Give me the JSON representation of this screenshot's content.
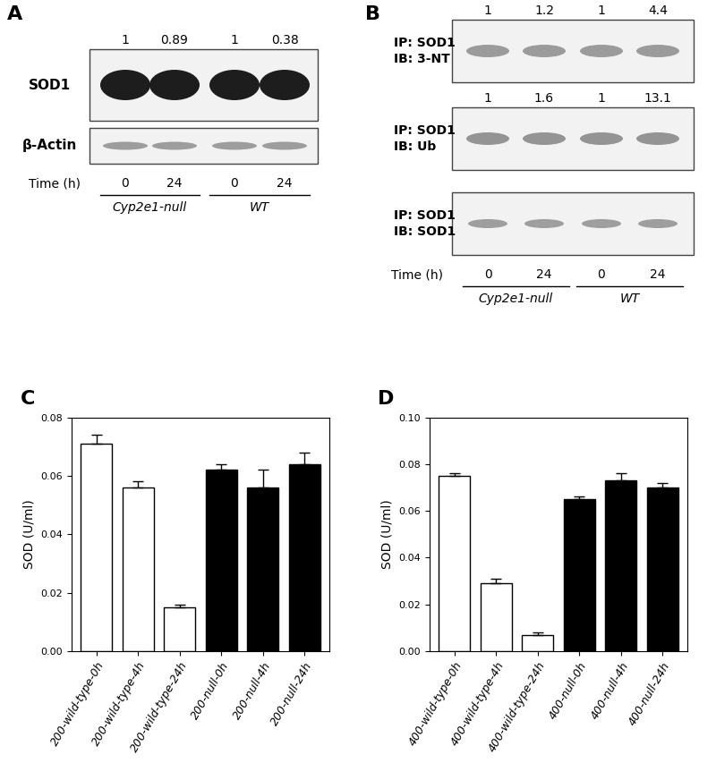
{
  "panels": [
    {
      "label": "A",
      "rows": [
        {
          "name": "SOD1",
          "quantification": [
            1,
            0.89,
            1,
            0.38
          ]
        },
        {
          "name": "β-Actin"
        }
      ],
      "time_label": "Time (h)",
      "lanes": [
        "0",
        "24",
        "0",
        "24"
      ],
      "groups": [
        "Cyp2e1-null",
        "WT"
      ]
    },
    {
      "label": "B",
      "rows": [
        {
          "labels": [
            "IP: SOD1",
            "IB: 3-NT"
          ],
          "quantification": [
            1,
            1.2,
            1,
            4.4
          ]
        },
        {
          "labels": [
            "IP: SOD1",
            "IB: Ub"
          ],
          "quantification": [
            1,
            1.6,
            1,
            13.1
          ]
        },
        {
          "labels": [
            "IP: SOD1",
            "IB: SOD1"
          ]
        }
      ],
      "time_label": "Time (h)",
      "lanes": [
        "0",
        "24",
        "0",
        "24"
      ],
      "groups": [
        "Cyp2e1-null",
        "WT"
      ]
    }
  ],
  "chart_data": [
    {
      "type": "bar",
      "panel_label": "C",
      "y_label": "SOD (U/ml)",
      "categories": [
        "200-wild-type-0h",
        "200-wild-type-4h",
        "200-wild-type-24h",
        "200-null-0h",
        "200-null-4h",
        "200-null-24h"
      ],
      "values": [
        0.071,
        0.056,
        0.015,
        0.062,
        0.056,
        0.064
      ],
      "errors": [
        0.003,
        0.002,
        0.001,
        0.002,
        0.006,
        0.004
      ],
      "colors": [
        "#ffffff",
        "#ffffff",
        "#ffffff",
        "#000000",
        "#000000",
        "#000000"
      ],
      "ylim": [
        0,
        0.08
      ],
      "yticks": [
        {
          "value": 0,
          "label": "0.00"
        },
        {
          "value": 0.02,
          "label": "0.02"
        },
        {
          "value": 0.04,
          "label": "0.04"
        },
        {
          "value": 0.06,
          "label": "0.06"
        },
        {
          "value": 0.08,
          "label": "0.08"
        }
      ],
      "grid": false
    },
    {
      "type": "bar",
      "panel_label": "D",
      "y_label": "SOD (U/ml)",
      "categories": [
        "400-wild-type-0h",
        "400-wild-type-4h",
        "400-wild-type-24h",
        "400-null-0h",
        "400-null-4h",
        "400-null-24h"
      ],
      "values": [
        0.075,
        0.029,
        0.007,
        0.065,
        0.073,
        0.07
      ],
      "errors": [
        0.001,
        0.002,
        0.001,
        0.001,
        0.003,
        0.002
      ],
      "colors": [
        "#ffffff",
        "#ffffff",
        "#ffffff",
        "#000000",
        "#000000",
        "#000000"
      ],
      "ylim": [
        0,
        0.1
      ],
      "yticks": [
        {
          "value": 0,
          "label": "0.00"
        },
        {
          "value": 0.02,
          "label": "0.02"
        },
        {
          "value": 0.04,
          "label": "0.04"
        },
        {
          "value": 0.06,
          "label": "0.06"
        },
        {
          "value": 0.08,
          "label": "0.08"
        },
        {
          "value": 0.1,
          "label": "0.10"
        }
      ],
      "grid": false
    }
  ]
}
